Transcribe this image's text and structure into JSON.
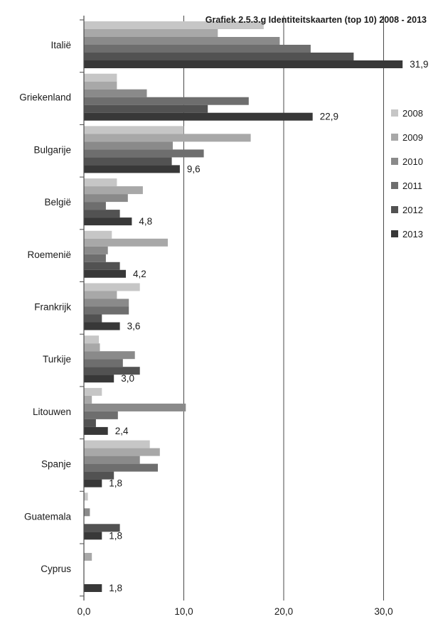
{
  "chart_data": {
    "type": "bar",
    "orientation": "horizontal",
    "title": "Grafiek 2.5.3.g Identiteitskaarten (top 10) 2008 - 2013",
    "categories": [
      "Italië",
      "Griekenland",
      "Bulgarije",
      "België",
      "Roemenië",
      "Frankrijk",
      "Turkije",
      "Litouwen",
      "Spanje",
      "Guatemala",
      "Cyprus"
    ],
    "series": [
      {
        "name": "2008",
        "color": "#c6c6c6",
        "values": [
          18.0,
          3.3,
          10.0,
          3.3,
          2.8,
          5.6,
          1.5,
          1.8,
          6.6,
          0.4,
          0.0
        ]
      },
      {
        "name": "2009",
        "color": "#a8a8a8",
        "values": [
          13.4,
          3.3,
          16.7,
          5.9,
          8.4,
          3.3,
          1.6,
          0.8,
          7.6,
          0.0,
          0.8
        ]
      },
      {
        "name": "2010",
        "color": "#8a8a8a",
        "values": [
          19.6,
          6.3,
          8.9,
          4.4,
          2.4,
          4.5,
          5.1,
          10.2,
          5.6,
          0.6,
          0.0
        ]
      },
      {
        "name": "2011",
        "color": "#6e6e6e",
        "values": [
          22.7,
          16.5,
          12.0,
          2.2,
          2.2,
          4.5,
          3.9,
          3.4,
          7.4,
          0.0,
          0.0
        ]
      },
      {
        "name": "2012",
        "color": "#525252",
        "values": [
          27.0,
          12.4,
          8.8,
          3.6,
          3.6,
          1.8,
          5.6,
          1.2,
          3.0,
          3.6,
          0.0
        ]
      },
      {
        "name": "2013",
        "color": "#383838",
        "values": [
          31.9,
          22.9,
          9.6,
          4.8,
          4.2,
          3.6,
          3.0,
          2.4,
          1.8,
          1.8,
          1.8
        ]
      }
    ],
    "data_labels": [
      "31,9",
      "22,9",
      "9,6",
      "4,8",
      "4,2",
      "3,6",
      "3,0",
      "2,4",
      "1,8",
      "1,8",
      "1,8"
    ],
    "x_ticks": [
      0,
      10,
      20,
      30
    ],
    "x_tick_labels": [
      "0,0",
      "10,0",
      "20,0",
      "30,0"
    ],
    "xlim": [
      0,
      33
    ],
    "xlabel": "",
    "ylabel": "",
    "grid": true,
    "legend_position": "right"
  }
}
